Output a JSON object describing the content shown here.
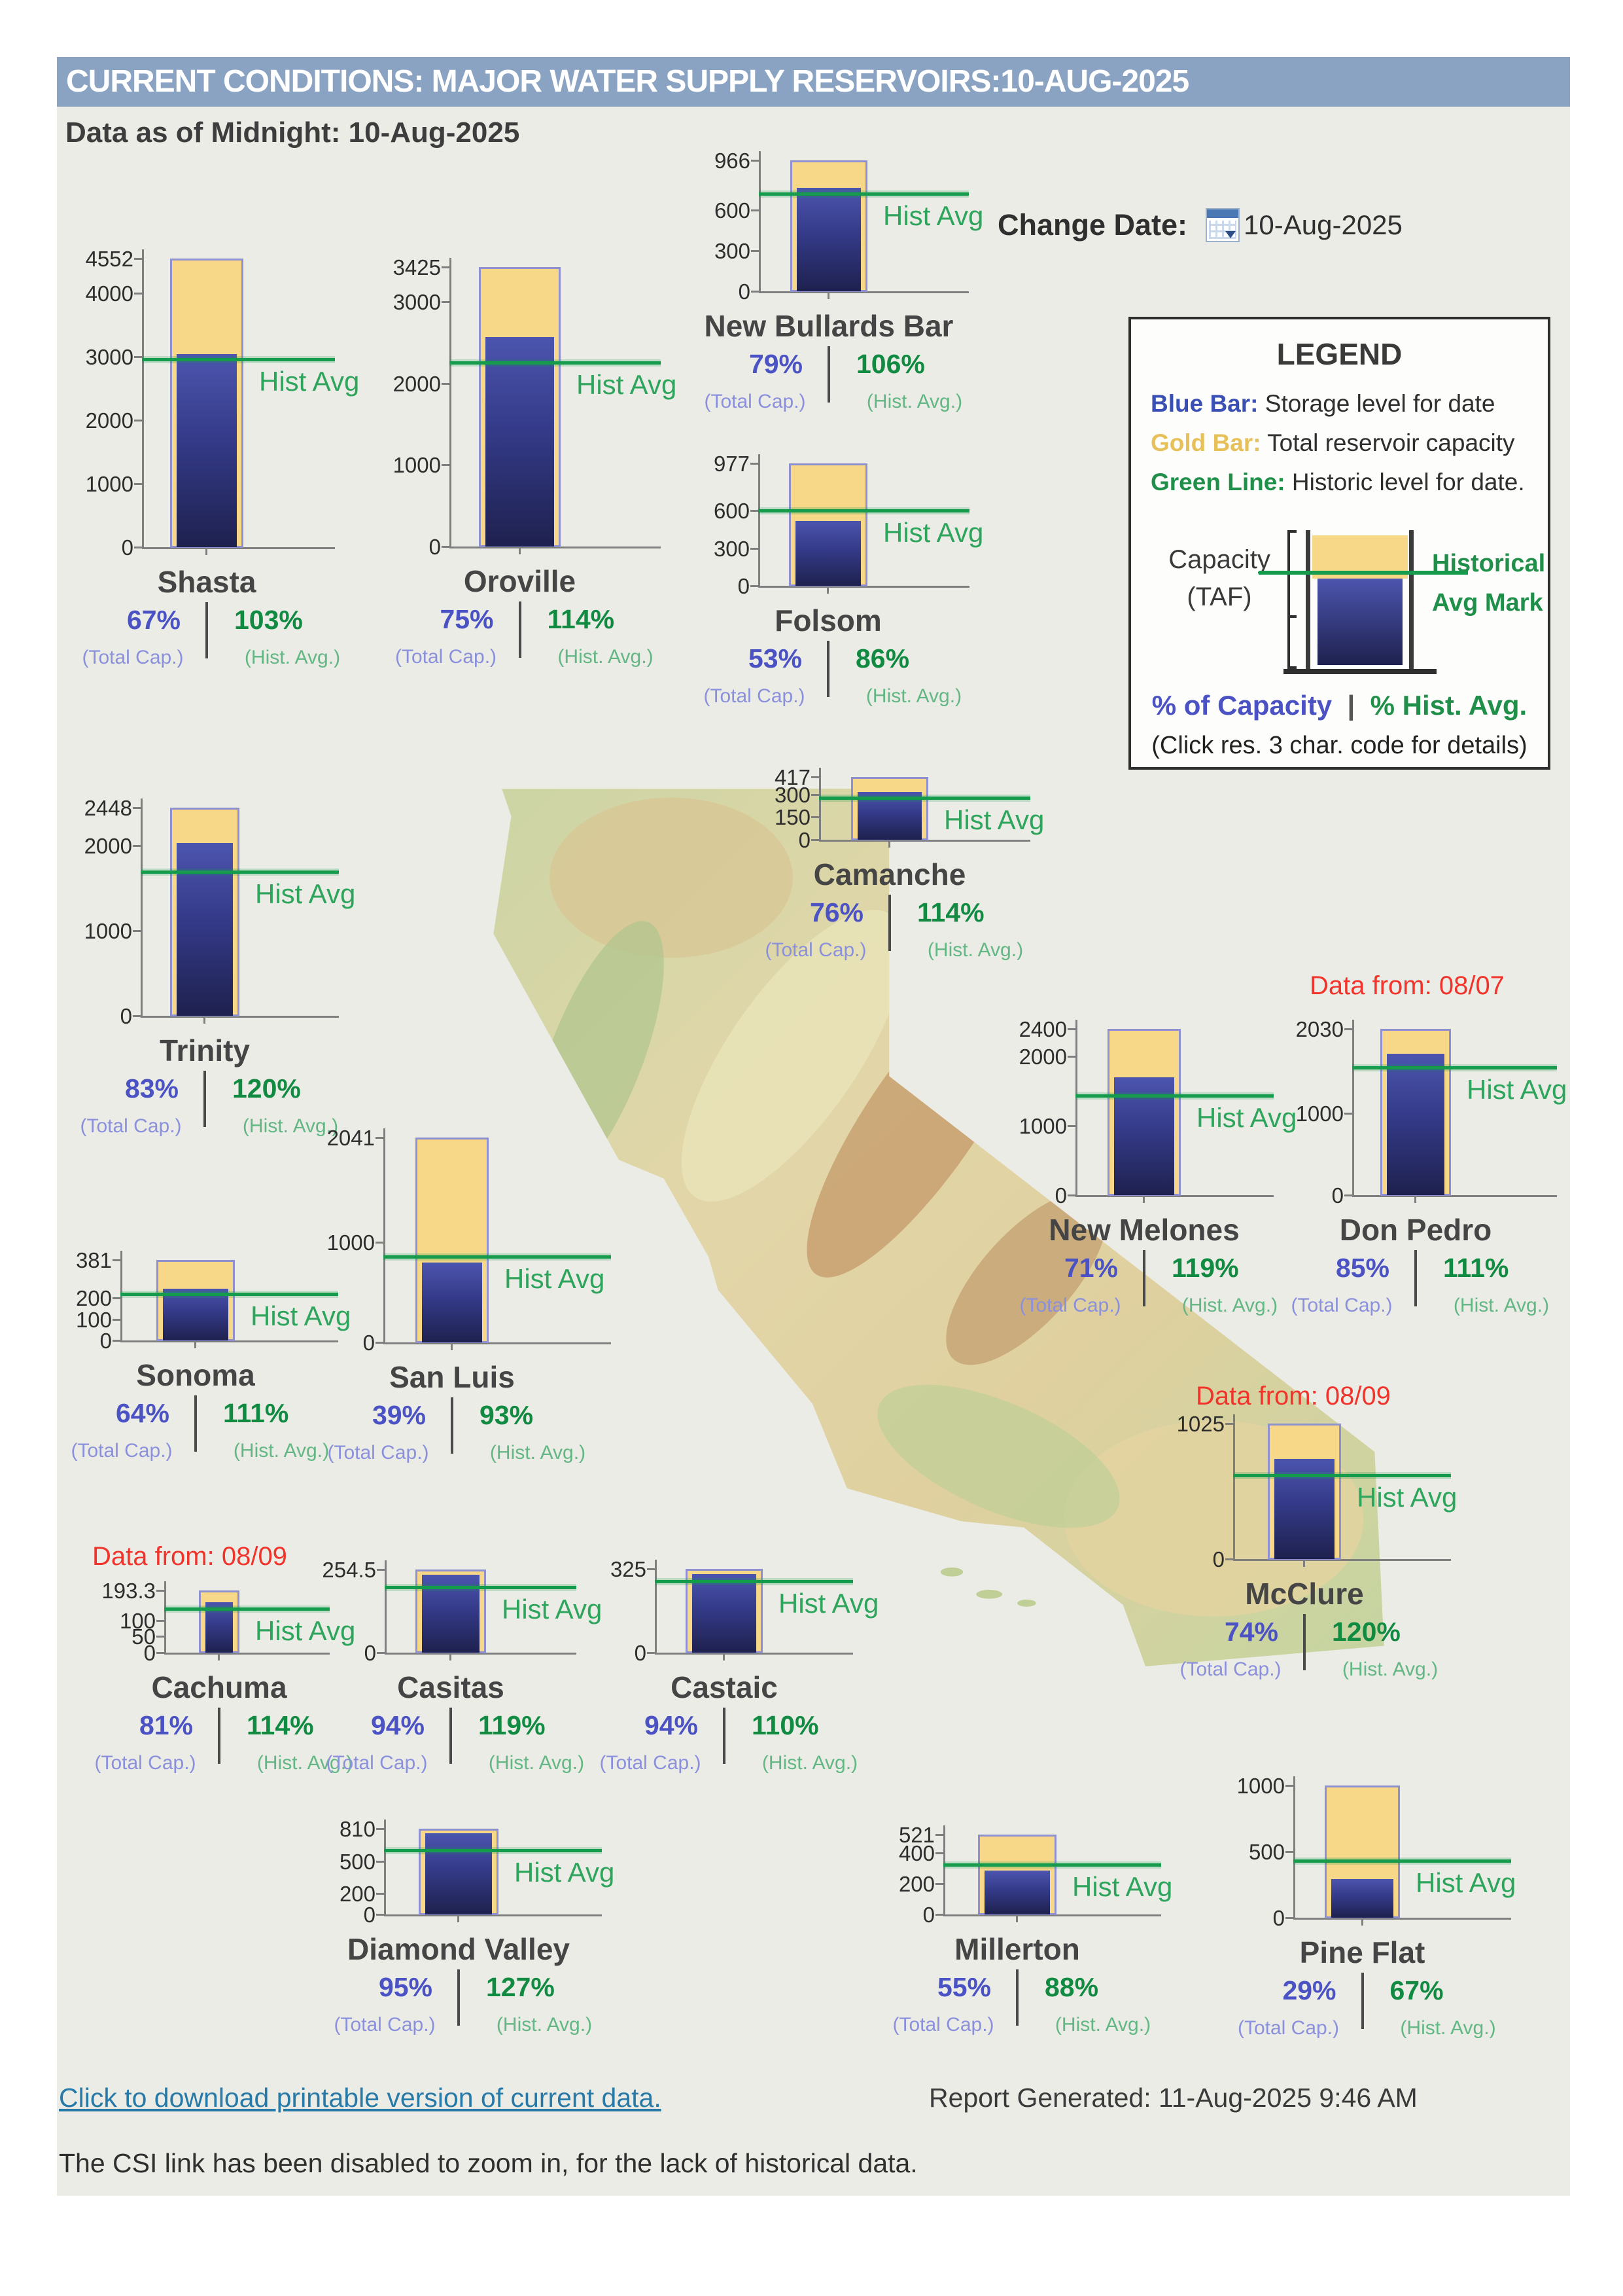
{
  "header": {
    "title": "CURRENT CONDITIONS: MAJOR WATER SUPPLY RESERVOIRS:10-AUG-2025",
    "subtitle": "Data as of Midnight: 10-Aug-2025"
  },
  "change_date": {
    "label": "Change Date:",
    "icon": "calendar-icon",
    "value": "10-Aug-2025"
  },
  "legend": {
    "title": "LEGEND",
    "items": [
      {
        "key": "Blue Bar:",
        "desc": " Storage level for date",
        "color": "#3A50B4"
      },
      {
        "key": "Gold Bar:",
        "desc": " Total reservoir capacity",
        "color": "#E8C05A"
      },
      {
        "key": "Green Line:",
        "desc": " Historic level for date.",
        "color": "#1F8F4A"
      }
    ],
    "capacity_label_1": "Capacity",
    "capacity_label_2": "(TAF)",
    "hist_mark_label_1": "Historical",
    "hist_mark_label_2": "Avg Mark",
    "pct_capacity": "% of Capacity",
    "pct_divider": "|",
    "pct_hist": "% Hist. Avg.",
    "click_note": "(Click res. 3 char. code for details)"
  },
  "colors": {
    "header_bar": "#8AA3C2",
    "background": "#ECECE6",
    "gold_bar": "#F6D888",
    "gold_bar_border": "#8F90D0",
    "blue_bar_top": "#4C55AE",
    "blue_bar_bottom": "#1E214E",
    "green_line": "#149C4C",
    "pct_capacity_text": "#4A52C4",
    "pct_hist_text": "#118A42",
    "note_red": "#F1342B",
    "link_blue": "#2779A8"
  },
  "chart_data": {
    "type": "bar",
    "unit": "TAF",
    "ylabel": "Capacity (TAF)",
    "hist_avg_line_label": "Hist Avg",
    "caption_total_cap": "(Total Cap.)",
    "caption_hist_avg": "(Hist. Avg.)",
    "legend_entries": [
      "Blue Bar: Storage level for date",
      "Gold Bar: Total reservoir capacity",
      "Green Line: Historic level for date"
    ],
    "reservoirs": [
      {
        "name": "Shasta",
        "capacity_taf": 4552,
        "pct_of_capacity": 67,
        "pct_of_hist_avg": 103,
        "storage_taf_est": 3050,
        "hist_avg_taf_est": 2961,
        "tick_labels": [
          "4552",
          "4000",
          "3000",
          "2000",
          "1000",
          "0"
        ]
      },
      {
        "name": "Oroville",
        "capacity_taf": 3425,
        "pct_of_capacity": 75,
        "pct_of_hist_avg": 114,
        "storage_taf_est": 2569,
        "hist_avg_taf_est": 2253,
        "tick_labels": [
          "3425",
          "3000",
          "2000",
          "1000",
          "0"
        ]
      },
      {
        "name": "New Bullards Bar",
        "capacity_taf": 966,
        "pct_of_capacity": 79,
        "pct_of_hist_avg": 106,
        "storage_taf_est": 763,
        "hist_avg_taf_est": 720,
        "tick_labels": [
          "966",
          "600",
          "300",
          "0"
        ]
      },
      {
        "name": "Folsom",
        "capacity_taf": 977,
        "pct_of_capacity": 53,
        "pct_of_hist_avg": 86,
        "storage_taf_est": 518,
        "hist_avg_taf_est": 602,
        "tick_labels": [
          "977",
          "600",
          "300",
          "0"
        ]
      },
      {
        "name": "Trinity",
        "capacity_taf": 2448,
        "pct_of_capacity": 83,
        "pct_of_hist_avg": 120,
        "storage_taf_est": 2032,
        "hist_avg_taf_est": 1693,
        "tick_labels": [
          "2448",
          "2000",
          "1000",
          "0"
        ]
      },
      {
        "name": "Camanche",
        "capacity_taf": 417,
        "pct_of_capacity": 76,
        "pct_of_hist_avg": 114,
        "storage_taf_est": 317,
        "hist_avg_taf_est": 278,
        "tick_labels": [
          "417",
          "300",
          "150",
          "0"
        ]
      },
      {
        "name": "New Melones",
        "capacity_taf": 2400,
        "pct_of_capacity": 71,
        "pct_of_hist_avg": 119,
        "storage_taf_est": 1704,
        "hist_avg_taf_est": 1432,
        "tick_labels": [
          "2400",
          "2000",
          "1000",
          "0"
        ]
      },
      {
        "name": "Don Pedro",
        "capacity_taf": 2030,
        "pct_of_capacity": 85,
        "pct_of_hist_avg": 111,
        "storage_taf_est": 1726,
        "hist_avg_taf_est": 1555,
        "tick_labels": [
          "2030",
          "1000",
          "0"
        ],
        "note": "Data from: 08/07"
      },
      {
        "name": "Sonoma",
        "capacity_taf": 381,
        "pct_of_capacity": 64,
        "pct_of_hist_avg": 111,
        "storage_taf_est": 244,
        "hist_avg_taf_est": 220,
        "tick_labels": [
          "381",
          "200",
          "100",
          "0"
        ]
      },
      {
        "name": "San Luis",
        "capacity_taf": 2041,
        "pct_of_capacity": 39,
        "pct_of_hist_avg": 93,
        "storage_taf_est": 796,
        "hist_avg_taf_est": 856,
        "tick_labels": [
          "2041",
          "1000",
          "0"
        ]
      },
      {
        "name": "McClure",
        "capacity_taf": 1025,
        "pct_of_capacity": 74,
        "pct_of_hist_avg": 120,
        "storage_taf_est": 759,
        "hist_avg_taf_est": 632,
        "tick_labels": [
          "1025",
          "0"
        ],
        "note": "Data from: 08/09"
      },
      {
        "name": "Cachuma",
        "capacity_taf": 193.3,
        "pct_of_capacity": 81,
        "pct_of_hist_avg": 114,
        "storage_taf_est": 157,
        "hist_avg_taf_est": 137,
        "tick_labels": [
          "193.3",
          "100",
          "50",
          "0"
        ],
        "note": "Data from: 08/09"
      },
      {
        "name": "Casitas",
        "capacity_taf": 254.5,
        "pct_of_capacity": 94,
        "pct_of_hist_avg": 119,
        "storage_taf_est": 239,
        "hist_avg_taf_est": 201,
        "tick_labels": [
          "254.5",
          "0"
        ]
      },
      {
        "name": "Castaic",
        "capacity_taf": 325,
        "pct_of_capacity": 94,
        "pct_of_hist_avg": 110,
        "storage_taf_est": 306,
        "hist_avg_taf_est": 278,
        "tick_labels": [
          "325",
          "0"
        ]
      },
      {
        "name": "Diamond Valley",
        "capacity_taf": 810,
        "pct_of_capacity": 95,
        "pct_of_hist_avg": 127,
        "storage_taf_est": 770,
        "hist_avg_taf_est": 606,
        "tick_labels": [
          "810",
          "500",
          "200",
          "0"
        ]
      },
      {
        "name": "Millerton",
        "capacity_taf": 521,
        "pct_of_capacity": 55,
        "pct_of_hist_avg": 88,
        "storage_taf_est": 287,
        "hist_avg_taf_est": 326,
        "tick_labels": [
          "521",
          "400",
          "200",
          "0"
        ]
      },
      {
        "name": "Pine Flat",
        "capacity_taf": 1000,
        "pct_of_capacity": 29,
        "pct_of_hist_avg": 67,
        "storage_taf_est": 290,
        "hist_avg_taf_est": 433,
        "tick_labels": [
          "1000",
          "500",
          "0"
        ]
      }
    ]
  },
  "footer": {
    "download_link": "Click to download printable version of current data.",
    "report_generated": "Report Generated: 11-Aug-2025 9:46 AM",
    "csi_note": "The CSI link has been disabled to zoom in, for the lack of historical data."
  }
}
